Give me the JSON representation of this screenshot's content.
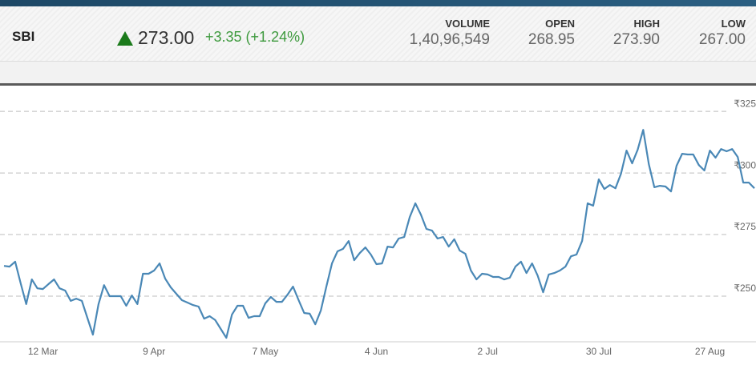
{
  "quote": {
    "symbol": "SBI",
    "price": "273.00",
    "change": "+3.35 (+1.24%)",
    "stats": [
      {
        "label": "VOLUME",
        "value": "1,40,96,549"
      },
      {
        "label": "OPEN",
        "value": "268.95"
      },
      {
        "label": "HIGH",
        "value": "273.90"
      },
      {
        "label": "LOW",
        "value": "267.00"
      }
    ]
  },
  "chart_data": {
    "type": "line",
    "color": "#4a88b6",
    "grid": true,
    "categories": [
      null,
      null,
      null,
      null,
      null,
      null,
      null,
      "12 Mar",
      null,
      null,
      null,
      null,
      null,
      null,
      null,
      null,
      null,
      null,
      null,
      null,
      null,
      null,
      null,
      null,
      null,
      null,
      null,
      "9 Apr",
      null,
      null,
      null,
      null,
      null,
      null,
      null,
      null,
      null,
      null,
      null,
      null,
      null,
      null,
      null,
      null,
      null,
      null,
      null,
      "7 May",
      null,
      null,
      null,
      null,
      null,
      null,
      null,
      null,
      null,
      null,
      null,
      null,
      null,
      null,
      null,
      null,
      null,
      null,
      null,
      "4 Jun",
      null,
      null,
      null,
      null,
      null,
      null,
      null,
      null,
      null,
      null,
      null,
      null,
      null,
      null,
      null,
      null,
      null,
      null,
      null,
      "2 Jul",
      null,
      null,
      null,
      null,
      null,
      null,
      null,
      null,
      null,
      null,
      null,
      null,
      null,
      null,
      null,
      null,
      null,
      null,
      null,
      "30 Jul",
      null,
      null,
      null,
      null,
      null,
      null,
      null,
      null,
      null,
      null,
      null,
      null,
      null,
      null,
      null,
      null,
      null,
      null,
      null,
      "27 Aug",
      null,
      null,
      null,
      null,
      null,
      null,
      null,
      null
    ],
    "values": [
      262.3,
      262.0,
      264.0,
      255.2,
      246.8,
      256.8,
      253.2,
      252.9,
      254.9,
      256.8,
      253.2,
      252.3,
      248.1,
      249.0,
      248.1,
      241.2,
      234.4,
      246.8,
      254.5,
      250.0,
      250.0,
      250.0,
      246.1,
      250.3,
      246.8,
      259.1,
      259.1,
      260.4,
      263.3,
      257.1,
      253.6,
      251.0,
      248.4,
      247.4,
      246.4,
      245.8,
      240.9,
      241.9,
      240.3,
      236.7,
      233.1,
      242.5,
      246.1,
      246.1,
      241.2,
      241.9,
      241.9,
      247.1,
      249.7,
      247.7,
      247.7,
      250.6,
      253.9,
      248.4,
      243.2,
      242.9,
      238.6,
      244.2,
      253.9,
      263.3,
      268.2,
      269.2,
      272.4,
      264.6,
      267.5,
      269.8,
      266.9,
      263.0,
      263.3,
      270.1,
      269.8,
      273.4,
      274.0,
      282.1,
      287.7,
      283.1,
      277.3,
      276.6,
      273.4,
      274.0,
      270.1,
      273.1,
      268.5,
      267.2,
      260.4,
      256.8,
      259.1,
      258.8,
      257.8,
      257.8,
      256.8,
      257.5,
      262.0,
      264.0,
      259.4,
      263.3,
      258.4,
      251.6,
      258.8,
      259.4,
      260.4,
      262.0,
      266.2,
      266.9,
      272.4,
      287.7,
      286.7,
      297.4,
      293.5,
      295.1,
      293.8,
      299.7,
      309.1,
      303.9,
      309.4,
      317.5,
      303.6,
      294.2,
      294.8,
      294.5,
      292.5,
      302.9,
      307.8,
      307.5,
      307.5,
      303.2,
      301.0,
      309.1,
      306.2,
      309.7,
      308.8,
      309.7,
      306.5,
      296.1,
      296.1,
      293.8
    ],
    "ylim": [
      231.5,
      335.1
    ],
    "yticks": [
      {
        "value": 250,
        "label": "₹250"
      },
      {
        "value": 275,
        "label": "₹275"
      },
      {
        "value": 300,
        "label": "₹300"
      },
      {
        "value": 325,
        "label": "₹325"
      }
    ]
  }
}
